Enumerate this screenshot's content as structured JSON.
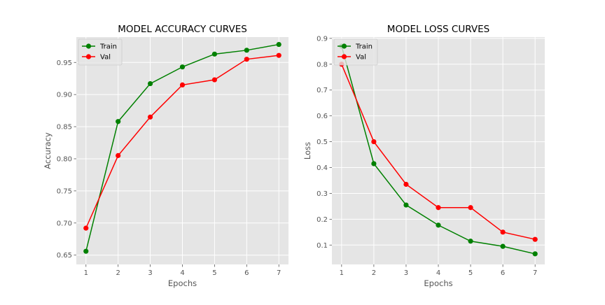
{
  "chart_data": [
    {
      "type": "line",
      "title": "MODEL ACCURACY CURVES",
      "xlabel": "Epochs",
      "ylabel": "Accuracy",
      "x": [
        1,
        2,
        3,
        4,
        5,
        6,
        7
      ],
      "xlim": [
        0.7,
        7.3
      ],
      "ylim": [
        0.6355,
        0.9895
      ],
      "xticks": [
        "1",
        "2",
        "3",
        "4",
        "5",
        "6",
        "7"
      ],
      "yticks": [
        "0.65",
        "0.70",
        "0.75",
        "0.80",
        "0.85",
        "0.90",
        "0.95"
      ],
      "ytick_values": [
        0.65,
        0.7,
        0.75,
        0.8,
        0.85,
        0.9,
        0.95
      ],
      "grid": true,
      "legend_position": "top-left",
      "series": [
        {
          "name": "Train",
          "color": "#008000",
          "values": [
            0.656,
            0.858,
            0.917,
            0.943,
            0.963,
            0.969,
            0.978
          ]
        },
        {
          "name": "Val",
          "color": "#ff0000",
          "values": [
            0.692,
            0.805,
            0.865,
            0.915,
            0.923,
            0.955,
            0.961
          ]
        }
      ]
    },
    {
      "type": "line",
      "title": "MODEL LOSS CURVES",
      "xlabel": "Epochs",
      "ylabel": "Loss",
      "x": [
        1,
        2,
        3,
        4,
        5,
        6,
        7
      ],
      "xlim": [
        0.7,
        7.3
      ],
      "ylim": [
        0.025,
        0.905
      ],
      "xticks": [
        "1",
        "2",
        "3",
        "4",
        "5",
        "6",
        "7"
      ],
      "yticks": [
        "0.1",
        "0.2",
        "0.3",
        "0.4",
        "0.5",
        "0.6",
        "0.7",
        "0.8",
        "0.9"
      ],
      "ytick_values": [
        0.1,
        0.2,
        0.3,
        0.4,
        0.5,
        0.6,
        0.7,
        0.8,
        0.9
      ],
      "grid": true,
      "legend_position": "top-left",
      "series": [
        {
          "name": "Train",
          "color": "#008000",
          "values": [
            0.87,
            0.415,
            0.255,
            0.177,
            0.115,
            0.095,
            0.066
          ]
        },
        {
          "name": "Val",
          "color": "#ff0000",
          "values": [
            0.8,
            0.5,
            0.335,
            0.245,
            0.245,
            0.15,
            0.122
          ]
        }
      ]
    }
  ]
}
